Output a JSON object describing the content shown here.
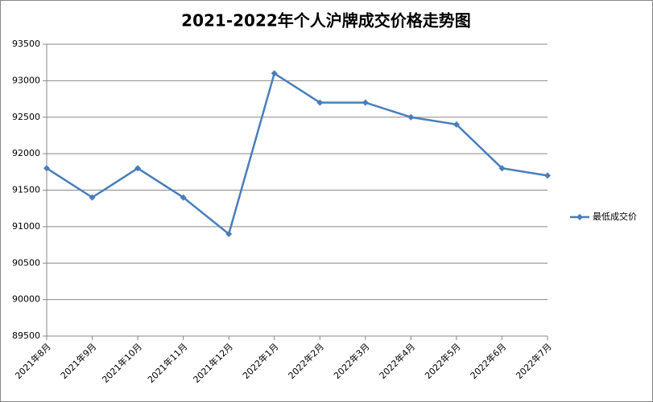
{
  "chart_data": {
    "type": "line",
    "title": "2021-2022年个人沪牌成交价格走势图",
    "categories": [
      "2021年8月",
      "2021年9月",
      "2021年10月",
      "2021年11月",
      "2021年12月",
      "2022年1月",
      "2022年2月",
      "2022年3月",
      "2022年4月",
      "2022年5月",
      "2022年6月",
      "2022年7月"
    ],
    "series": [
      {
        "name": "最低成交价",
        "color": "#4a7ebb",
        "values": [
          91800,
          91400,
          91800,
          91400,
          90900,
          93100,
          92700,
          92700,
          92500,
          92400,
          91800,
          91700
        ]
      }
    ],
    "ylim": [
      89500,
      93500
    ],
    "yticks": [
      89500,
      90000,
      90500,
      91000,
      91500,
      92000,
      92500,
      93000,
      93500
    ],
    "grid": true,
    "legend": "right"
  }
}
